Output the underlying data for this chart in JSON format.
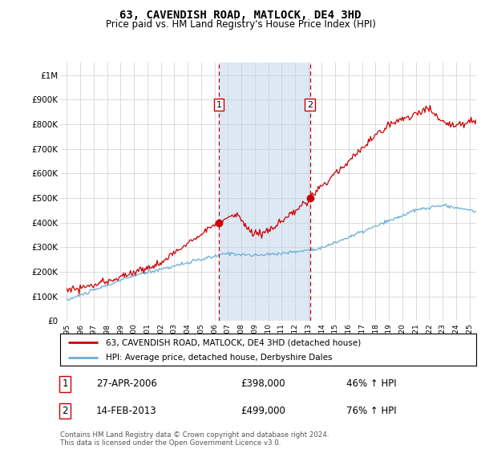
{
  "title": "63, CAVENDISH ROAD, MATLOCK, DE4 3HD",
  "subtitle": "Price paid vs. HM Land Registry's House Price Index (HPI)",
  "legend_line1": "63, CAVENDISH ROAD, MATLOCK, DE4 3HD (detached house)",
  "legend_line2": "HPI: Average price, detached house, Derbyshire Dales",
  "footnote": "Contains HM Land Registry data © Crown copyright and database right 2024.\nThis data is licensed under the Open Government Licence v3.0.",
  "sale1_date": "27-APR-2006",
  "sale1_price": "£398,000",
  "sale1_hpi": "46% ↑ HPI",
  "sale2_date": "14-FEB-2013",
  "sale2_price": "£499,000",
  "sale2_hpi": "76% ↑ HPI",
  "sale1_x": 2006.32,
  "sale1_y": 398000,
  "sale2_x": 2013.12,
  "sale2_y": 499000,
  "vline1_x": 2006.32,
  "vline2_x": 2013.12,
  "hpi_color": "#6baed6",
  "price_color": "#cc0000",
  "vline_color": "#cc0000",
  "background_color": "#ffffff",
  "shaded_bg_color": "#dce9f5",
  "ylim": [
    0,
    1050000
  ],
  "xlim": [
    1994.5,
    2025.5
  ],
  "yticks": [
    0,
    100000,
    200000,
    300000,
    400000,
    500000,
    600000,
    700000,
    800000,
    900000,
    1000000
  ],
  "ytick_labels": [
    "£0",
    "£100K",
    "£200K",
    "£300K",
    "£400K",
    "£500K",
    "£600K",
    "£700K",
    "£800K",
    "£900K",
    "£1M"
  ],
  "xticks": [
    1995,
    1996,
    1997,
    1998,
    1999,
    2000,
    2001,
    2002,
    2003,
    2004,
    2005,
    2006,
    2007,
    2008,
    2009,
    2010,
    2011,
    2012,
    2013,
    2014,
    2015,
    2016,
    2017,
    2018,
    2019,
    2020,
    2021,
    2022,
    2023,
    2024,
    2025
  ]
}
